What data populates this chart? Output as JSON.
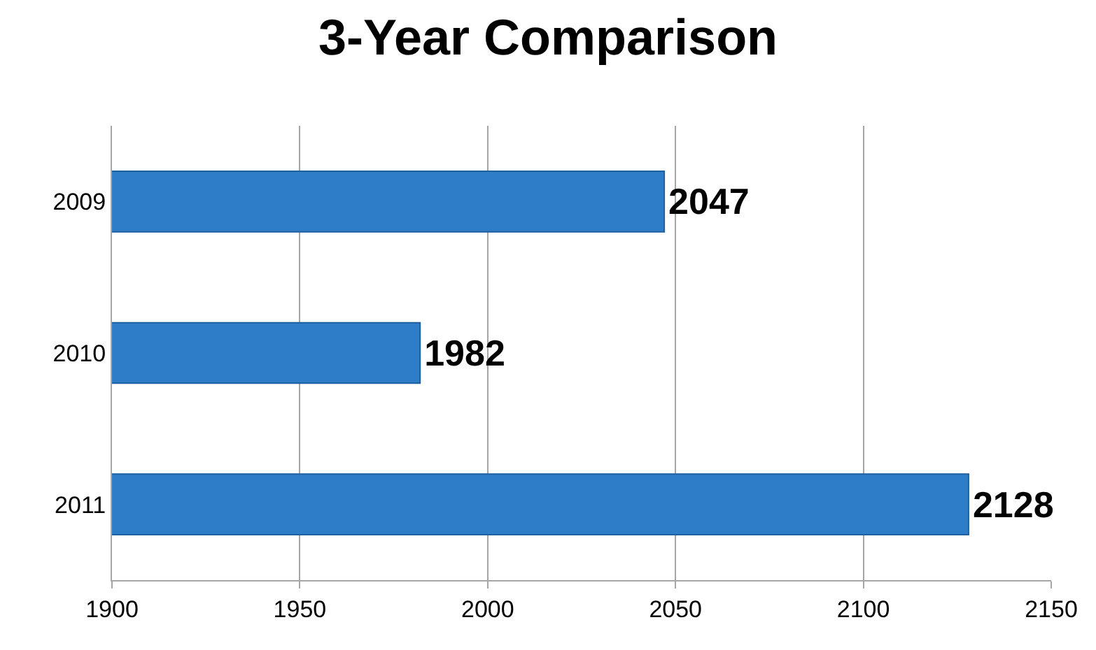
{
  "chart_data": {
    "type": "bar",
    "title": "3-Year Comparison",
    "orientation": "horizontal",
    "categories": [
      "2009",
      "2010",
      "2011"
    ],
    "values": [
      2047,
      1982,
      2128
    ],
    "color": "#2e7dc8",
    "xlim": [
      1900,
      2150
    ],
    "xticks": [
      1900,
      1950,
      2000,
      2050,
      2100,
      2150
    ],
    "grid": "x",
    "data_labels": true
  }
}
